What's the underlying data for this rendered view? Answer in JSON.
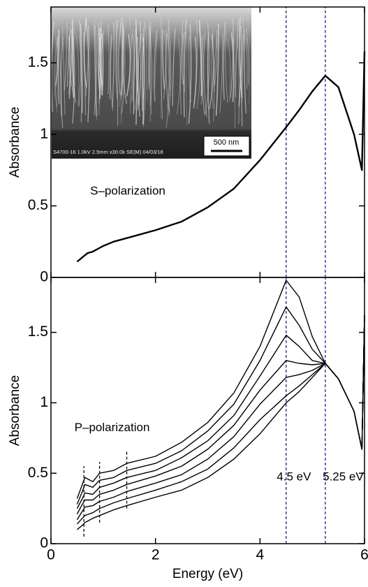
{
  "chart_data": [
    {
      "type": "line",
      "ylabel": "Absorbance",
      "xlim": [
        0,
        6
      ],
      "ylim": [
        0,
        1.89
      ],
      "xticks": [
        0,
        2,
        4,
        6
      ],
      "yticks": [
        0,
        0.5,
        1,
        1.5
      ],
      "show_xtick_labels": false,
      "x": [
        0.5,
        0.6,
        0.7,
        0.8,
        1,
        1.2,
        1.5,
        2,
        2.5,
        3,
        3.5,
        4,
        4.5,
        4.75,
        5,
        5.25,
        5.5,
        5.8,
        5.95,
        6
      ],
      "series": [
        {
          "color": "#000000",
          "values": [
            0.11,
            0.14,
            0.17,
            0.18,
            0.22,
            0.25,
            0.28,
            0.33,
            0.39,
            0.49,
            0.62,
            0.82,
            1.05,
            1.17,
            1.3,
            1.41,
            1.33,
            1.0,
            0.75,
            1.58
          ]
        }
      ],
      "annotations": [
        {
          "text": "S–polarization",
          "x": 0.75,
          "y": 0.6
        }
      ],
      "vlines": [
        {
          "value": 4.5,
          "color": "#1a1ab4",
          "ymin": 0,
          "ymax": 1.89
        },
        {
          "value": 5.25,
          "color": "#1a1ab4",
          "ymin": 0,
          "ymax": 1.89
        }
      ],
      "inset": {
        "caption": "S4700-16 1.0kV 2.5mm x30.0k SE(M) 04/03/18",
        "scale_bar": "500 nm"
      }
    },
    {
      "type": "line",
      "xlabel": "Energy (eV)",
      "ylabel": "Absorbance",
      "xlim": [
        0,
        6
      ],
      "ylim": [
        0,
        1.89
      ],
      "xticks": [
        0,
        2,
        4,
        6
      ],
      "yticks": [
        0,
        0.5,
        1,
        1.5
      ],
      "show_xtick_labels": true,
      "x": [
        0.5,
        0.6,
        0.65,
        0.8,
        0.93,
        1.2,
        1.45,
        2,
        2.5,
        3,
        3.5,
        4,
        4.5,
        4.75,
        5,
        5.25,
        5.5,
        5.8,
        5.95,
        6
      ],
      "series": [
        {
          "color": "#000000",
          "values": [
            0.1,
            0.13,
            0.15,
            0.18,
            0.2,
            0.24,
            0.27,
            0.33,
            0.38,
            0.47,
            0.6,
            0.78,
            1.0,
            1.08,
            1.18,
            1.28,
            1.17,
            0.94,
            0.67,
            1.62
          ]
        },
        {
          "color": "#000000",
          "values": [
            0.14,
            0.18,
            0.2,
            0.22,
            0.25,
            0.29,
            0.32,
            0.38,
            0.44,
            0.53,
            0.68,
            0.88,
            1.05,
            1.12,
            1.2,
            1.28,
            1.17,
            0.94,
            0.67,
            1.62
          ]
        },
        {
          "color": "#000000",
          "values": [
            0.17,
            0.23,
            0.26,
            0.27,
            0.3,
            0.33,
            0.37,
            0.43,
            0.49,
            0.6,
            0.76,
            0.99,
            1.18,
            1.2,
            1.23,
            1.28,
            1.17,
            0.94,
            0.67,
            1.62
          ]
        },
        {
          "color": "#000000",
          "values": [
            0.21,
            0.28,
            0.31,
            0.31,
            0.35,
            0.38,
            0.42,
            0.48,
            0.55,
            0.67,
            0.84,
            1.09,
            1.3,
            1.28,
            1.27,
            1.28,
            1.17,
            0.94,
            0.67,
            1.62
          ]
        },
        {
          "color": "#000000",
          "values": [
            0.25,
            0.32,
            0.36,
            0.35,
            0.4,
            0.43,
            0.47,
            0.52,
            0.61,
            0.73,
            0.91,
            1.19,
            1.48,
            1.4,
            1.3,
            1.28,
            1.17,
            0.94,
            0.67,
            1.62
          ]
        },
        {
          "color": "#000000",
          "values": [
            0.28,
            0.37,
            0.42,
            0.4,
            0.45,
            0.47,
            0.52,
            0.57,
            0.66,
            0.8,
            0.99,
            1.3,
            1.68,
            1.55,
            1.38,
            1.28,
            1.17,
            0.94,
            0.67,
            1.62
          ]
        },
        {
          "color": "#000000",
          "values": [
            0.32,
            0.42,
            0.47,
            0.44,
            0.5,
            0.52,
            0.57,
            0.62,
            0.72,
            0.86,
            1.07,
            1.4,
            1.87,
            1.75,
            1.47,
            1.28,
            1.17,
            0.94,
            0.67,
            1.62
          ]
        }
      ],
      "annotations": [
        {
          "text": "P–polarization",
          "x": 0.45,
          "y": 0.82
        },
        {
          "text": "4.5 eV",
          "x": 4.32,
          "y": 0.47
        },
        {
          "text": "5.25 eV",
          "x": 5.2,
          "y": 0.47
        }
      ],
      "vlines": [
        {
          "value": 4.5,
          "color": "#1a1ab4",
          "ymin": 0,
          "ymax": 1.89
        },
        {
          "value": 5.25,
          "color": "#1a1ab4",
          "ymin": 0,
          "ymax": 1.89
        },
        {
          "value": 0.63,
          "color": "#000000",
          "ymin": 0.05,
          "ymax": 0.55
        },
        {
          "value": 0.93,
          "color": "#000000",
          "ymin": 0.15,
          "ymax": 0.58
        },
        {
          "value": 1.45,
          "color": "#000000",
          "ymin": 0.25,
          "ymax": 0.66
        }
      ]
    }
  ]
}
